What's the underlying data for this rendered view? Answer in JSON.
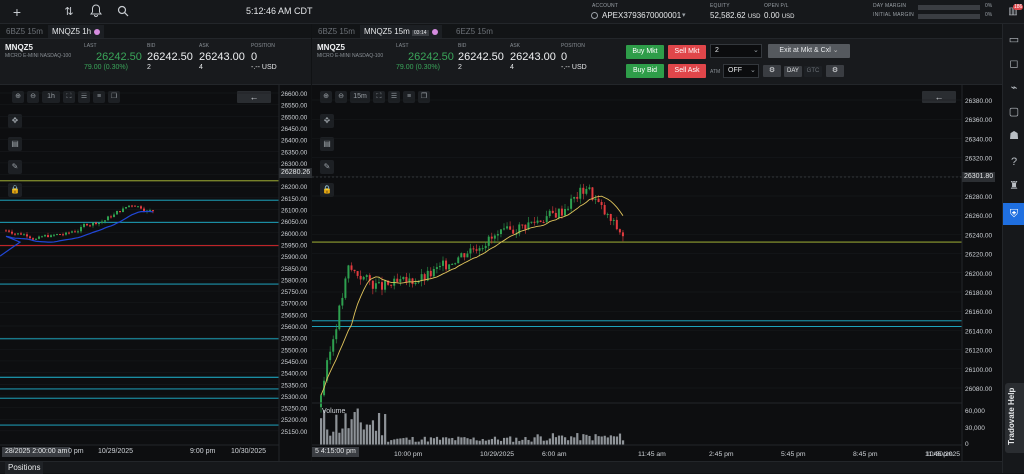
{
  "topbar": {
    "clock": "5:12:46 AM CDT",
    "account_label": "ACCOUNT",
    "account_value": "APEX3793670000001",
    "equity_label": "EQUITY",
    "equity_value": "52,582.62",
    "equity_unit": "USD",
    "openpl_label": "OPEN P/L",
    "openpl_value": "0.00",
    "openpl_unit": "USD",
    "day_margin_label": "DAY MARGIN",
    "day_margin_value": "0%",
    "day_margin_fill": 0,
    "initial_margin_label": "INITIAL MARGIN",
    "initial_margin_value": "0%",
    "initial_margin_fill": 0
  },
  "rightrail": {
    "notif_badge": "186",
    "help_tab": "Tradovate Help"
  },
  "left": {
    "tabs": [
      {
        "label": "6BZ5 15m"
      },
      {
        "label": "MNQZ5 1h",
        "active": true
      }
    ],
    "quote": {
      "symbol": "MNQZ5",
      "desc": "MICRO E-MINI NASDAQ-100",
      "last_label": "LAST",
      "last": "26242.50",
      "change": "79.00 (0.30%)",
      "bid_label": "BID",
      "bid": "26242.50",
      "bid_size": "2",
      "ask_label": "ASK",
      "ask": "26243.00",
      "ask_size": "4",
      "pos_label": "POSITION",
      "pos": "0",
      "pos_usd": "-.-- USD"
    },
    "timeframe": "1h",
    "price_ticks": [
      "26600.00",
      "26550.00",
      "26500.00",
      "26450.00",
      "26400.00",
      "26350.00",
      "26300.00",
      "26250.00",
      "26200.00",
      "26150.00",
      "26100.00",
      "26050.00",
      "26000.00",
      "25950.00",
      "25900.00",
      "25850.00",
      "25800.00",
      "25750.00",
      "25700.00",
      "25650.00",
      "25600.00",
      "25550.00",
      "25500.00",
      "25450.00",
      "25400.00",
      "25350.00",
      "25300.00",
      "25250.00",
      "25200.00",
      "25150.00"
    ],
    "price_tag": "26280.26",
    "time_box": "28/2025 2:00:00 am",
    "time_labels": [
      "0 pm",
      "10/29/2025",
      "9:00 pm",
      "10/30/2025"
    ]
  },
  "right": {
    "tabs": [
      {
        "label": "6BZ5 15m"
      },
      {
        "label": "MNQZ5 15m",
        "active": true,
        "badge": "03:14"
      },
      {
        "label": "6EZ5 15m"
      }
    ],
    "quote": {
      "symbol": "MNQZ5",
      "desc": "MICRO E-MINI NASDAQ-100",
      "last_label": "LAST",
      "last": "26242.50",
      "change": "79.00 (0.30%)",
      "bid_label": "BID",
      "bid": "26242.50",
      "bid_size": "2",
      "ask_label": "ASK",
      "ask": "26243.00",
      "ask_size": "4",
      "pos_label": "POSITION",
      "pos": "0",
      "pos_usd": "-.-- USD"
    },
    "order": {
      "buy_mkt": "Buy Mkt",
      "sell_mkt": "Sell Mkt",
      "qty": "2",
      "exit": "Exit at Mkt & Cxl",
      "buy_bid": "Buy Bid",
      "sell_ask": "Sell Ask",
      "atm_label": "ATM",
      "atm_value": "OFF",
      "day": "DAY",
      "gtc": "GTC"
    },
    "timeframe": "15m",
    "price_ticks": [
      "26380.00",
      "26360.00",
      "26340.00",
      "26320.00",
      "26300.00",
      "26280.00",
      "26260.00",
      "26240.00",
      "26220.00",
      "26200.00",
      "26180.00",
      "26160.00",
      "26140.00",
      "26120.00",
      "26100.00",
      "26080.00"
    ],
    "price_tag": "26301.80",
    "volume_label": "Volume",
    "volume_ticks": [
      "60,000",
      "30,000",
      "0"
    ],
    "time_box": "5 4:15:00 pm",
    "time_labels": [
      "10:00 pm",
      "10/29/2025",
      "6:00 am",
      "11:45 am",
      "2:45 pm",
      "5:45 pm",
      "8:45 pm",
      "11:45 pm",
      "10/30/2025"
    ]
  },
  "bottom": {
    "positions_tab": "Positions"
  },
  "colors": {
    "up": "#2ea04f",
    "down": "#e23b3f",
    "ma_blue": "#2147d6",
    "ma_yellow": "#e0c45c",
    "level_yellow": "#b7c83a",
    "level_cyan": "#1fb7d4",
    "level_red": "#d8282c"
  }
}
